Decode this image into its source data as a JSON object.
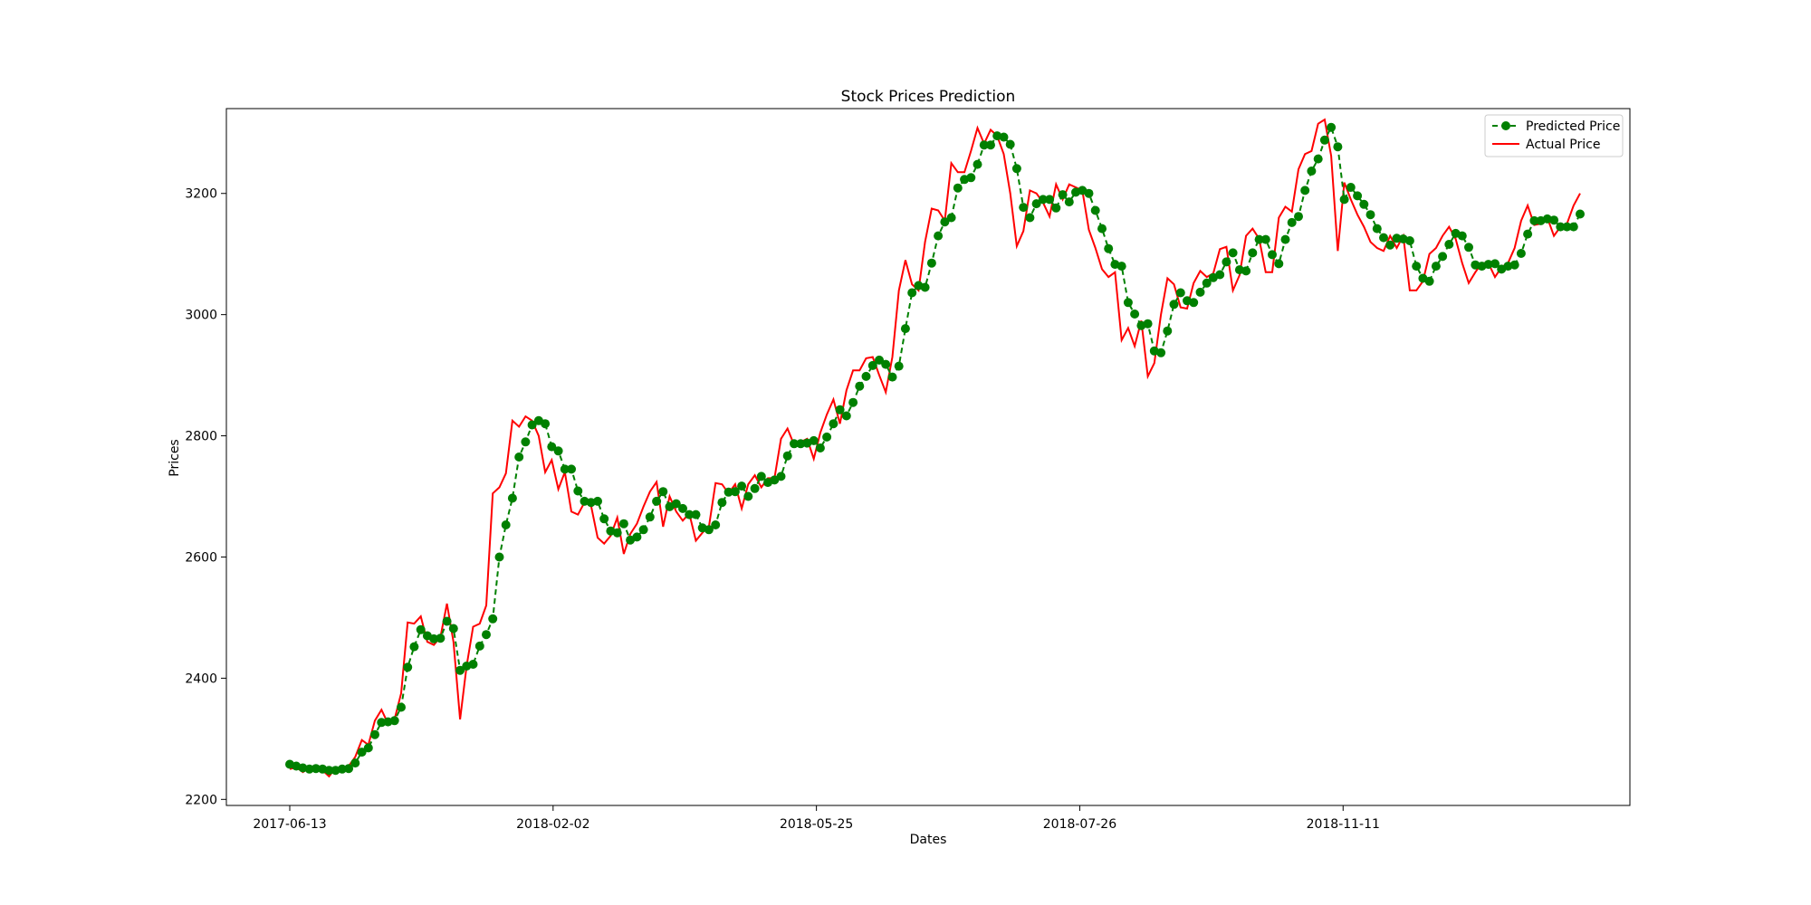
{
  "chart_data": {
    "type": "line",
    "title": "Stock Prices Prediction",
    "xlabel": "Dates",
    "ylabel": "Prices",
    "ylim": [
      2190,
      3340
    ],
    "grid": false,
    "legend_position": "top-right",
    "x_tick_labels": [
      "2017-06-13",
      "2018-02-02",
      "2018-05-25",
      "2018-07-26",
      "2018-11-11"
    ],
    "y_ticks": [
      2200,
      2400,
      2600,
      2800,
      3000,
      3200
    ],
    "colors": {
      "predicted": "#008000",
      "actual": "#ff0000"
    },
    "series": [
      {
        "name": "Predicted Price",
        "style": "dashed-with-circles",
        "values": [
          2258,
          2255,
          2252,
          2250,
          2251,
          2250,
          2248,
          2248,
          2250,
          2251,
          2260,
          2278,
          2285,
          2307,
          2327,
          2328,
          2330,
          2352,
          2418,
          2452,
          2480,
          2470,
          2465,
          2466,
          2494,
          2482,
          2413,
          2420,
          2423,
          2453,
          2472,
          2498,
          2600,
          2653,
          2697,
          2765,
          2790,
          2818,
          2825,
          2820,
          2782,
          2775,
          2745,
          2745,
          2709,
          2692,
          2690,
          2692,
          2663,
          2643,
          2640,
          2655,
          2628,
          2633,
          2645,
          2666,
          2692,
          2708,
          2683,
          2688,
          2680,
          2670,
          2670,
          2648,
          2645,
          2653,
          2690,
          2707,
          2708,
          2717,
          2700,
          2713,
          2733,
          2723,
          2727,
          2733,
          2767,
          2787,
          2787,
          2788,
          2792,
          2780,
          2798,
          2820,
          2843,
          2833,
          2855,
          2882,
          2898,
          2916,
          2925,
          2918,
          2897,
          2915,
          2977,
          3036,
          3048,
          3045,
          3085,
          3130,
          3153,
          3160,
          3209,
          3223,
          3226,
          3248,
          3280,
          3280,
          3295,
          3293,
          3281,
          3241,
          3177,
          3160,
          3183,
          3190,
          3190,
          3176,
          3198,
          3186,
          3202,
          3205,
          3200,
          3172,
          3142,
          3109,
          3083,
          3080,
          3020,
          3001,
          2982,
          2985,
          2940,
          2937,
          2973,
          3017,
          3036,
          3023,
          3020,
          3037,
          3052,
          3061,
          3066,
          3087,
          3102,
          3074,
          3072,
          3102,
          3124,
          3124,
          3099,
          3084,
          3124,
          3152,
          3162,
          3205,
          3237,
          3257,
          3288,
          3309,
          3277,
          3190,
          3210,
          3196,
          3182,
          3165,
          3142,
          3127,
          3115,
          3126,
          3125,
          3122,
          3080,
          3060,
          3055,
          3080,
          3096,
          3116,
          3134,
          3130,
          3111,
          3082,
          3080,
          3083,
          3084,
          3075,
          3080,
          3082,
          3101,
          3133,
          3155,
          3155,
          3158,
          3156,
          3145,
          3145,
          3145,
          3166
        ]
      },
      {
        "name": "Actual Price",
        "style": "solid",
        "values": [
          2250,
          2253,
          2245,
          2252,
          2246,
          2248,
          2238,
          2252,
          2246,
          2255,
          2270,
          2298,
          2290,
          2330,
          2348,
          2325,
          2332,
          2375,
          2492,
          2490,
          2502,
          2460,
          2455,
          2468,
          2523,
          2460,
          2332,
          2420,
          2485,
          2490,
          2520,
          2705,
          2715,
          2738,
          2825,
          2815,
          2832,
          2825,
          2800,
          2740,
          2760,
          2712,
          2740,
          2675,
          2670,
          2690,
          2685,
          2632,
          2622,
          2635,
          2665,
          2605,
          2638,
          2655,
          2683,
          2708,
          2724,
          2650,
          2700,
          2675,
          2660,
          2672,
          2627,
          2640,
          2650,
          2722,
          2720,
          2705,
          2720,
          2680,
          2720,
          2735,
          2715,
          2730,
          2730,
          2795,
          2812,
          2785,
          2790,
          2795,
          2762,
          2805,
          2835,
          2860,
          2820,
          2875,
          2908,
          2908,
          2928,
          2930,
          2900,
          2872,
          2930,
          3040,
          3090,
          3050,
          3040,
          3120,
          3175,
          3172,
          3155,
          3250,
          3235,
          3235,
          3270,
          3308,
          3282,
          3305,
          3295,
          3265,
          3200,
          3113,
          3138,
          3205,
          3200,
          3185,
          3162,
          3215,
          3190,
          3215,
          3210,
          3205,
          3140,
          3110,
          3075,
          3062,
          3070,
          2958,
          2978,
          2948,
          2990,
          2898,
          2920,
          3000,
          3060,
          3050,
          3012,
          3010,
          3052,
          3072,
          3062,
          3068,
          3108,
          3112,
          3040,
          3065,
          3130,
          3142,
          3125,
          3070,
          3070,
          3160,
          3178,
          3170,
          3240,
          3265,
          3270,
          3315,
          3322,
          3262,
          3105,
          3218,
          3190,
          3165,
          3145,
          3120,
          3110,
          3105,
          3130,
          3110,
          3130,
          3040,
          3040,
          3055,
          3100,
          3110,
          3130,
          3145,
          3125,
          3085,
          3052,
          3070,
          3085,
          3085,
          3062,
          3078,
          3085,
          3110,
          3155,
          3180,
          3148,
          3150,
          3160,
          3130,
          3145,
          3150,
          3180,
          3200
        ]
      }
    ]
  }
}
